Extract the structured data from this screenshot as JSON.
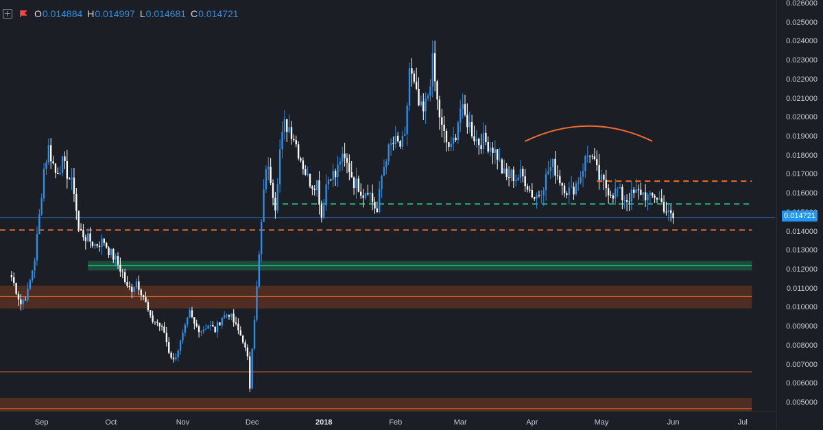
{
  "legend": {
    "open_label": "O",
    "open": "0.014884",
    "high_label": "H",
    "high": "0.014997",
    "low_label": "L",
    "low": "0.014681",
    "close_label": "C",
    "close": "0.014721"
  },
  "price_tag": "0.014721",
  "colors": {
    "background": "#1b1e25",
    "candle_up": "#2f8ee5",
    "candle_down": "#ffffff",
    "resistance": "#ef6c2c",
    "support_green": "#25c47a",
    "zone_brown": "#7a3b20",
    "last_price": "#2196f3"
  },
  "icons": [
    "expand-icon",
    "flag-icon"
  ],
  "chart_data": {
    "type": "candlestick",
    "ylim": [
      0.0045,
      0.026
    ],
    "y_ticks": [
      "0.026000",
      "0.025000",
      "0.024000",
      "0.023000",
      "0.022000",
      "0.021000",
      "0.020000",
      "0.019000",
      "0.018000",
      "0.017000",
      "0.016000",
      "0.015000",
      "0.014000",
      "0.013000",
      "0.012000",
      "0.011000",
      "0.010000",
      "0.009000",
      "0.008000",
      "0.007000",
      "0.006000",
      "0.005000"
    ],
    "x_ticks": [
      {
        "label": "Sep",
        "day": 13
      },
      {
        "label": "Oct",
        "day": 43
      },
      {
        "label": "Nov",
        "day": 74
      },
      {
        "label": "Dec",
        "day": 104
      },
      {
        "label": "2018",
        "day": 135,
        "bold": true
      },
      {
        "label": "Feb",
        "day": 166
      },
      {
        "label": "Mar",
        "day": 194
      },
      {
        "label": "Apr",
        "day": 225
      },
      {
        "label": "May",
        "day": 255
      },
      {
        "label": "Jun",
        "day": 286
      },
      {
        "label": "Jul",
        "day": 316
      }
    ],
    "x_range_days": [
      -5,
      330
    ],
    "start_date": "2017-08-19",
    "anchors": [
      [
        0,
        0.0116
      ],
      [
        4,
        0.0102
      ],
      [
        7,
        0.0108
      ],
      [
        10,
        0.0126
      ],
      [
        12,
        0.0148
      ],
      [
        14,
        0.0173
      ],
      [
        16,
        0.0184
      ],
      [
        19,
        0.0171
      ],
      [
        22,
        0.0176
      ],
      [
        25,
        0.0168
      ],
      [
        27,
        0.0162
      ],
      [
        29,
        0.0141
      ],
      [
        32,
        0.0137
      ],
      [
        36,
        0.0133
      ],
      [
        40,
        0.0135
      ],
      [
        42,
        0.013
      ],
      [
        45,
        0.0125
      ],
      [
        48,
        0.0118
      ],
      [
        50,
        0.011
      ],
      [
        52,
        0.011
      ],
      [
        54,
        0.0114
      ],
      [
        57,
        0.0106
      ],
      [
        60,
        0.0094
      ],
      [
        63,
        0.0092
      ],
      [
        66,
        0.0087
      ],
      [
        68,
        0.0077
      ],
      [
        70,
        0.0072
      ],
      [
        72,
        0.0078
      ],
      [
        75,
        0.0089
      ],
      [
        77,
        0.0097
      ],
      [
        79,
        0.0091
      ],
      [
        82,
        0.0088
      ],
      [
        85,
        0.0091
      ],
      [
        88,
        0.0088
      ],
      [
        91,
        0.0095
      ],
      [
        94,
        0.0097
      ],
      [
        97,
        0.009
      ],
      [
        100,
        0.0083
      ],
      [
        102,
        0.0073
      ],
      [
        103,
        0.0058
      ],
      [
        104,
        0.008
      ],
      [
        106,
        0.011
      ],
      [
        108,
        0.0144
      ],
      [
        110,
        0.0175
      ],
      [
        112,
        0.0168
      ],
      [
        114,
        0.0154
      ],
      [
        116,
        0.0183
      ],
      [
        118,
        0.0196
      ],
      [
        120,
        0.0195
      ],
      [
        122,
        0.019
      ],
      [
        124,
        0.0182
      ],
      [
        126,
        0.0175
      ],
      [
        128,
        0.0168
      ],
      [
        130,
        0.0165
      ],
      [
        132,
        0.0166
      ],
      [
        134,
        0.0148
      ],
      [
        136,
        0.0165
      ],
      [
        138,
        0.0171
      ],
      [
        140,
        0.0169
      ],
      [
        142,
        0.0178
      ],
      [
        144,
        0.0177
      ],
      [
        146,
        0.0173
      ],
      [
        148,
        0.0166
      ],
      [
        150,
        0.0164
      ],
      [
        152,
        0.016
      ],
      [
        154,
        0.0163
      ],
      [
        156,
        0.0156
      ],
      [
        158,
        0.015
      ],
      [
        160,
        0.0169
      ],
      [
        162,
        0.018
      ],
      [
        164,
        0.0185
      ],
      [
        166,
        0.0187
      ],
      [
        168,
        0.0185
      ],
      [
        170,
        0.0188
      ],
      [
        172,
        0.0226
      ],
      [
        174,
        0.0216
      ],
      [
        176,
        0.0206
      ],
      [
        178,
        0.0202
      ],
      [
        180,
        0.0212
      ],
      [
        182,
        0.0229
      ],
      [
        184,
        0.0208
      ],
      [
        186,
        0.0194
      ],
      [
        188,
        0.0187
      ],
      [
        190,
        0.0183
      ],
      [
        192,
        0.0192
      ],
      [
        194,
        0.0205
      ],
      [
        196,
        0.02
      ],
      [
        198,
        0.0196
      ],
      [
        200,
        0.019
      ],
      [
        202,
        0.0187
      ],
      [
        204,
        0.0188
      ],
      [
        206,
        0.0186
      ],
      [
        208,
        0.0184
      ],
      [
        210,
        0.018
      ],
      [
        212,
        0.0172
      ],
      [
        214,
        0.0168
      ],
      [
        216,
        0.017
      ],
      [
        218,
        0.0168
      ],
      [
        220,
        0.017
      ],
      [
        222,
        0.0167
      ],
      [
        224,
        0.0162
      ],
      [
        226,
        0.0158
      ],
      [
        228,
        0.016
      ],
      [
        230,
        0.0165
      ],
      [
        232,
        0.0172
      ],
      [
        234,
        0.0175
      ],
      [
        236,
        0.017
      ],
      [
        238,
        0.0165
      ],
      [
        240,
        0.0162
      ],
      [
        242,
        0.0161
      ],
      [
        244,
        0.0165
      ],
      [
        246,
        0.017
      ],
      [
        248,
        0.0178
      ],
      [
        250,
        0.0182
      ],
      [
        252,
        0.0175
      ],
      [
        254,
        0.0168
      ],
      [
        256,
        0.0165
      ],
      [
        258,
        0.0162
      ],
      [
        260,
        0.016
      ],
      [
        262,
        0.0162
      ],
      [
        264,
        0.0158
      ],
      [
        266,
        0.0157
      ],
      [
        268,
        0.0159
      ],
      [
        270,
        0.016
      ],
      [
        272,
        0.0161
      ],
      [
        274,
        0.0159
      ],
      [
        276,
        0.0157
      ],
      [
        278,
        0.0159
      ],
      [
        280,
        0.0157
      ],
      [
        282,
        0.0153
      ],
      [
        284,
        0.0149
      ],
      [
        286,
        0.0147
      ]
    ],
    "level_lines": [
      {
        "name": "orange-dashed-upper",
        "price": 0.01665,
        "dashed": true,
        "color": "#ef6c2c",
        "from_day": 253,
        "to_day": 320
      },
      {
        "name": "green-dashed",
        "price": 0.01545,
        "dashed": true,
        "color": "#25c47a",
        "from_day": 113,
        "to_day": 320
      },
      {
        "name": "last-price",
        "price": 0.014721,
        "dashed": false,
        "color": "#2a6fb5",
        "from_day": -5,
        "to_day": 330,
        "thin": true
      },
      {
        "name": "orange-dashed-lower",
        "price": 0.01408,
        "dashed": true,
        "color": "#ef6c2c",
        "from_day": -5,
        "to_day": 320
      },
      {
        "name": "orange-thin-mid",
        "price": 0.01058,
        "dashed": false,
        "color": "#ef6c2c",
        "from_day": -5,
        "to_day": 320
      },
      {
        "name": "orange-thin-low",
        "price": 0.00662,
        "dashed": false,
        "color": "#ef6c2c",
        "from_day": -5,
        "to_day": 320
      },
      {
        "name": "orange-thin-bottom",
        "price": 0.00468,
        "dashed": false,
        "color": "#ef6c2c",
        "from_day": -5,
        "to_day": 320
      }
    ],
    "zones": [
      {
        "name": "green-support-zone",
        "top": 0.01245,
        "bottom": 0.01195,
        "line": 0.0122,
        "color": "#25c47a",
        "from_day": 33,
        "to_day": 320
      },
      {
        "name": "brown-zone-mid",
        "top": 0.01115,
        "bottom": 0.00995,
        "color": "#7a3b20",
        "from_day": -5,
        "to_day": 320
      },
      {
        "name": "brown-zone-bottom",
        "top": 0.00525,
        "bottom": 0.00455,
        "color": "#7a3b20",
        "from_day": -5,
        "to_day": 320
      }
    ],
    "arc": {
      "from_day": 222,
      "to_day": 277,
      "from_price": 0.01875,
      "peak_price": 0.01955,
      "to_price": 0.01875,
      "color": "#ef6c2c"
    }
  }
}
